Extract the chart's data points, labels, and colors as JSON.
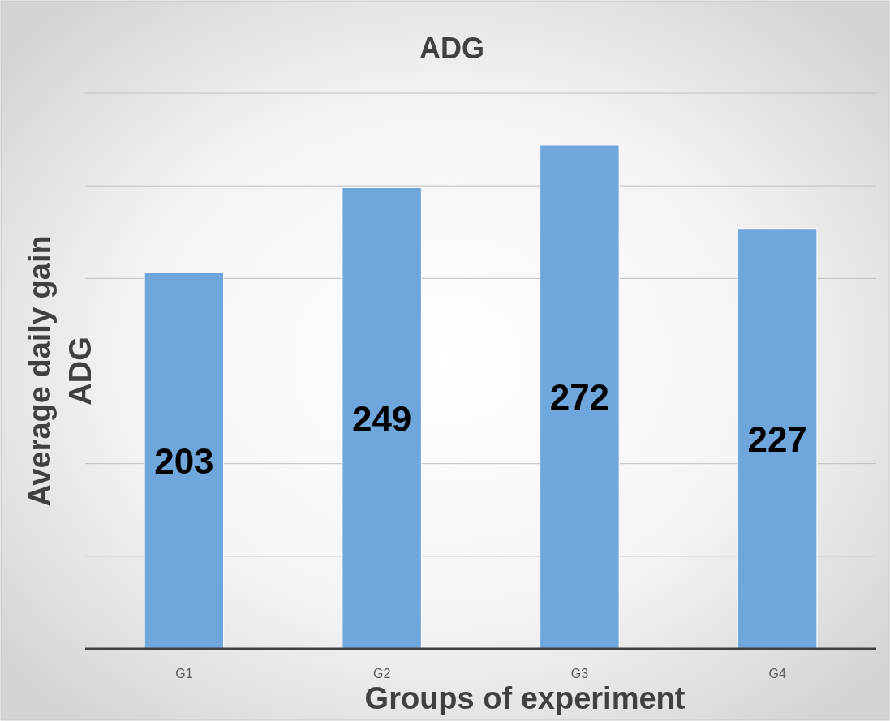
{
  "chart_data": {
    "type": "bar",
    "title": "ADG",
    "xlabel": "Groups of experiment",
    "ylabel": "Average daily gain\nADG",
    "categories": [
      "G1",
      "G2",
      "G3",
      "G4"
    ],
    "values": [
      203,
      249,
      272,
      227
    ],
    "color": "#6fa6dc",
    "ylim": [
      0,
      300
    ],
    "yticks": [
      {
        "value": 0,
        "label": null
      },
      {
        "value": 50,
        "label": null
      },
      {
        "value": 100,
        "label": null
      },
      {
        "value": 150,
        "label": null
      },
      {
        "value": 200,
        "label": null
      },
      {
        "value": 250,
        "label": null
      },
      {
        "value": 300,
        "label": null
      }
    ],
    "grid": true,
    "data_labels": true,
    "tick_labels": "x"
  }
}
